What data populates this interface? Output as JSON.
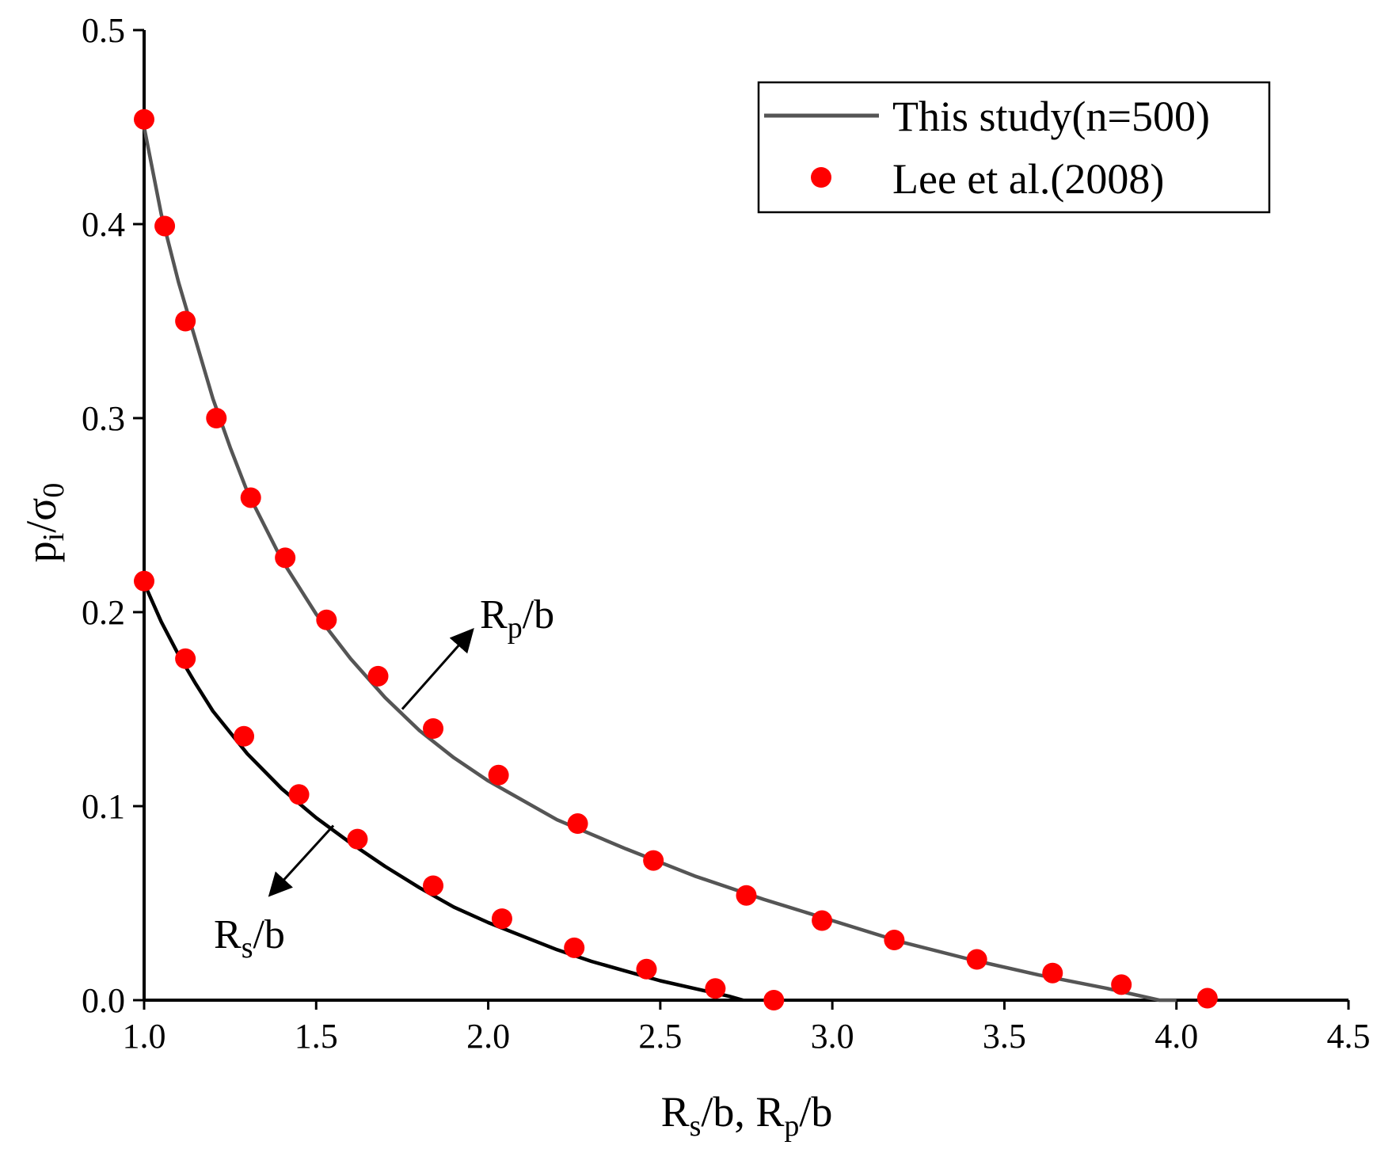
{
  "chart_data": {
    "type": "line",
    "title": "",
    "xlabel": {
      "main": "R",
      "sub1": "s",
      "mid": "/b, R",
      "sub2": "p",
      "tail": "/b"
    },
    "ylabel": {
      "main": "p",
      "sub1": "i",
      "mid": "/σ",
      "sub2": "0"
    },
    "xlim": [
      1.0,
      4.5
    ],
    "ylim": [
      0.0,
      0.5
    ],
    "x_ticks": [
      "1.0",
      "1.5",
      "2.0",
      "2.5",
      "3.0",
      "3.5",
      "4.0",
      "4.5"
    ],
    "y_ticks": [
      "0.0",
      "0.1",
      "0.2",
      "0.3",
      "0.4",
      "0.5"
    ],
    "grid": false,
    "legend_position": "top-right",
    "legend": [
      {
        "label": "This study(n=500)",
        "marker": "line",
        "color": "#555555"
      },
      {
        "label": "Lee et al.(2008)",
        "marker": "circle",
        "color": "#ff0000"
      }
    ],
    "series": [
      {
        "name": "This study(n=500)",
        "role": "Rp/b curve",
        "color": "#555555",
        "points": [
          [
            1.0,
            0.45
          ],
          [
            1.05,
            0.405
          ],
          [
            1.1,
            0.37
          ],
          [
            1.15,
            0.34
          ],
          [
            1.2,
            0.31
          ],
          [
            1.25,
            0.285
          ],
          [
            1.3,
            0.262
          ],
          [
            1.4,
            0.227
          ],
          [
            1.5,
            0.199
          ],
          [
            1.6,
            0.176
          ],
          [
            1.7,
            0.156
          ],
          [
            1.8,
            0.139
          ],
          [
            1.9,
            0.125
          ],
          [
            2.0,
            0.113
          ],
          [
            2.2,
            0.093
          ],
          [
            2.4,
            0.078
          ],
          [
            2.6,
            0.064
          ],
          [
            2.8,
            0.052
          ],
          [
            3.0,
            0.041
          ],
          [
            3.2,
            0.03
          ],
          [
            3.4,
            0.021
          ],
          [
            3.6,
            0.013
          ],
          [
            3.8,
            0.006
          ],
          [
            3.95,
            0.0
          ],
          [
            4.0,
            0.0
          ]
        ]
      },
      {
        "name": "This study(n=500)",
        "role": "Rs/b curve",
        "color": "#000000",
        "points": [
          [
            1.0,
            0.215
          ],
          [
            1.05,
            0.195
          ],
          [
            1.1,
            0.178
          ],
          [
            1.15,
            0.163
          ],
          [
            1.2,
            0.149
          ],
          [
            1.3,
            0.127
          ],
          [
            1.4,
            0.109
          ],
          [
            1.5,
            0.094
          ],
          [
            1.6,
            0.081
          ],
          [
            1.7,
            0.069
          ],
          [
            1.8,
            0.058
          ],
          [
            1.9,
            0.048
          ],
          [
            2.0,
            0.04
          ],
          [
            2.1,
            0.033
          ],
          [
            2.2,
            0.026
          ],
          [
            2.3,
            0.02
          ],
          [
            2.4,
            0.015
          ],
          [
            2.5,
            0.01
          ],
          [
            2.6,
            0.006
          ],
          [
            2.7,
            0.002
          ],
          [
            2.74,
            0.0
          ]
        ]
      },
      {
        "name": "Lee et al.(2008)",
        "role": "Rp/b points",
        "color": "#ff0000",
        "points": [
          [
            1.0,
            0.454
          ],
          [
            1.06,
            0.399
          ],
          [
            1.12,
            0.35
          ],
          [
            1.21,
            0.3
          ],
          [
            1.31,
            0.259
          ],
          [
            1.41,
            0.228
          ],
          [
            1.53,
            0.196
          ],
          [
            1.68,
            0.167
          ],
          [
            1.84,
            0.14
          ],
          [
            2.03,
            0.116
          ],
          [
            2.26,
            0.091
          ],
          [
            2.48,
            0.072
          ],
          [
            2.75,
            0.054
          ],
          [
            2.97,
            0.041
          ],
          [
            3.18,
            0.031
          ],
          [
            3.42,
            0.021
          ],
          [
            3.64,
            0.014
          ],
          [
            3.84,
            0.008
          ],
          [
            4.09,
            0.001
          ]
        ]
      },
      {
        "name": "Lee et al.(2008)",
        "role": "Rs/b points",
        "color": "#ff0000",
        "points": [
          [
            1.0,
            0.216
          ],
          [
            1.12,
            0.176
          ],
          [
            1.29,
            0.136
          ],
          [
            1.45,
            0.106
          ],
          [
            1.62,
            0.083
          ],
          [
            1.84,
            0.059
          ],
          [
            2.04,
            0.042
          ],
          [
            2.25,
            0.027
          ],
          [
            2.46,
            0.016
          ],
          [
            2.66,
            0.006
          ],
          [
            2.83,
            0.0
          ]
        ]
      }
    ],
    "annotations": [
      {
        "main": "R",
        "sub": "p",
        "tail": "/b",
        "arrow_from": [
          1.75,
          0.15
        ],
        "arrow_to": [
          1.95,
          0.19
        ]
      },
      {
        "main": "R",
        "sub": "s",
        "tail": "/b",
        "arrow_from": [
          1.55,
          0.09
        ],
        "arrow_to": [
          1.37,
          0.055
        ]
      }
    ]
  }
}
